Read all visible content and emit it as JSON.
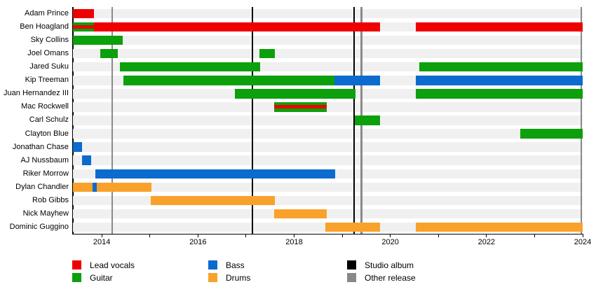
{
  "chart_data": {
    "type": "timeline",
    "title": "",
    "x_domain": [
      2013.4,
      2024.0
    ],
    "x_ticks": [
      2014,
      2015,
      2016,
      2017,
      2018,
      2019,
      2020,
      2021,
      2022,
      2023,
      2024
    ],
    "x_tick_labels": [
      2014,
      2016,
      2018,
      2020,
      2022,
      2024
    ],
    "grid": "row-tracks",
    "legend_position": "bottom",
    "role_colors": {
      "lead_vocals": "#ee0000",
      "guitar": "#0ca00c",
      "bass": "#0b6bce",
      "drums": "#f9a22b"
    },
    "line_colors": {
      "studio_album": "#000000",
      "other_release": "#8a8a8a"
    },
    "members": [
      {
        "name": "Adam Prince",
        "bars": [
          {
            "role": "lead_vocals",
            "start": 2013.4,
            "end": 2013.84
          }
        ]
      },
      {
        "name": "Ben Hoagland",
        "bars": [
          {
            "role": "guitar",
            "start": 2013.4,
            "end": 2013.84,
            "stripe_role": "lead_vocals"
          },
          {
            "role": "lead_vocals",
            "start": 2013.84,
            "end": 2019.79
          },
          {
            "role": "lead_vocals",
            "start": 2020.53,
            "end": 2024.0
          }
        ]
      },
      {
        "name": "Sky Collins",
        "bars": [
          {
            "role": "guitar",
            "start": 2013.4,
            "end": 2014.44
          }
        ]
      },
      {
        "name": "Joel Omans",
        "bars": [
          {
            "role": "guitar",
            "start": 2013.97,
            "end": 2014.33
          },
          {
            "role": "guitar",
            "start": 2017.28,
            "end": 2017.6
          }
        ]
      },
      {
        "name": "Jared Suku",
        "bars": [
          {
            "role": "guitar",
            "start": 2014.38,
            "end": 2017.3
          },
          {
            "role": "guitar",
            "start": 2020.6,
            "end": 2024.0
          }
        ]
      },
      {
        "name": "Kip Treeman",
        "bars": [
          {
            "role": "guitar",
            "start": 2014.45,
            "end": 2018.84
          },
          {
            "role": "bass",
            "start": 2018.84,
            "end": 2019.79
          },
          {
            "role": "bass",
            "start": 2020.53,
            "end": 2024.0
          }
        ]
      },
      {
        "name": "Juan Hernandez III",
        "bars": [
          {
            "role": "guitar",
            "start": 2016.77,
            "end": 2019.28
          },
          {
            "role": "guitar",
            "start": 2020.53,
            "end": 2024.0
          }
        ]
      },
      {
        "name": "Mac Rockwell",
        "bars": [
          {
            "role": "guitar",
            "start": 2017.58,
            "end": 2018.68,
            "stripe_role": "lead_vocals"
          }
        ]
      },
      {
        "name": "Carl Schulz",
        "bars": [
          {
            "role": "guitar",
            "start": 2019.26,
            "end": 2019.79
          }
        ]
      },
      {
        "name": "Clayton Blue",
        "bars": [
          {
            "role": "guitar",
            "start": 2022.7,
            "end": 2024.0
          }
        ]
      },
      {
        "name": "Jonathan Chase",
        "bars": [
          {
            "role": "bass",
            "start": 2013.4,
            "end": 2013.59
          }
        ]
      },
      {
        "name": "AJ Nussbaum",
        "bars": [
          {
            "role": "bass",
            "start": 2013.59,
            "end": 2013.78
          }
        ]
      },
      {
        "name": "Riker Morrow",
        "bars": [
          {
            "role": "bass",
            "start": 2013.87,
            "end": 2018.85
          }
        ]
      },
      {
        "name": "Dylan Chandler",
        "bars": [
          {
            "role": "drums",
            "start": 2013.4,
            "end": 2013.81
          },
          {
            "role": "bass",
            "start": 2013.81,
            "end": 2013.9
          },
          {
            "role": "drums",
            "start": 2013.9,
            "end": 2015.04
          }
        ]
      },
      {
        "name": "Rob Gibbs",
        "bars": [
          {
            "role": "drums",
            "start": 2015.02,
            "end": 2017.6
          }
        ]
      },
      {
        "name": "Nick Mayhew",
        "bars": [
          {
            "role": "drums",
            "start": 2017.58,
            "end": 2018.68
          }
        ]
      },
      {
        "name": "Dominic Guggino",
        "bars": [
          {
            "role": "drums",
            "start": 2018.65,
            "end": 2019.79
          },
          {
            "role": "drums",
            "start": 2020.53,
            "end": 2024.0
          }
        ]
      }
    ],
    "event_lines": [
      {
        "type": "other_release",
        "year": 2014.22
      },
      {
        "type": "studio_album",
        "year": 2017.13
      },
      {
        "type": "studio_album",
        "year": 2019.25
      },
      {
        "type": "other_release",
        "year": 2019.4
      },
      {
        "type": "other_release",
        "year": 2023.97
      }
    ]
  },
  "legend": {
    "items": [
      {
        "label": "Lead vocals",
        "color": "#ee0000"
      },
      {
        "label": "Guitar",
        "color": "#0ca00c"
      },
      {
        "label": "Bass",
        "color": "#0b6bce"
      },
      {
        "label": "Drums",
        "color": "#f9a22b"
      },
      {
        "label": "Studio album",
        "color": "#000000"
      },
      {
        "label": "Other release",
        "color": "#888888"
      }
    ]
  }
}
